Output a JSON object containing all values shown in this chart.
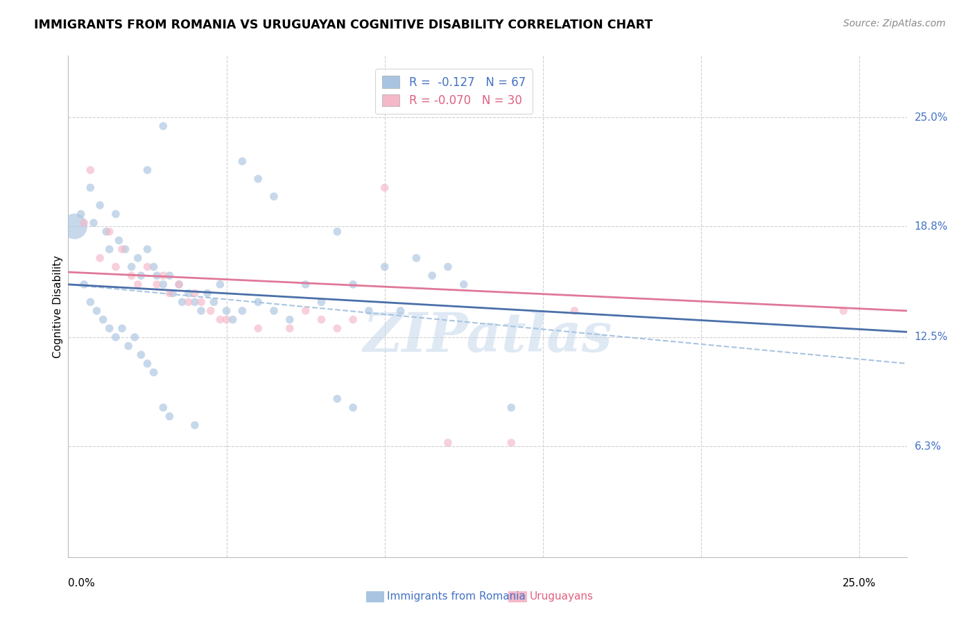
{
  "title": "IMMIGRANTS FROM ROMANIA VS URUGUAYAN COGNITIVE DISABILITY CORRELATION CHART",
  "source": "Source: ZipAtlas.com",
  "ylabel": "Cognitive Disability",
  "right_yticks": [
    "25.0%",
    "18.8%",
    "12.5%",
    "6.3%"
  ],
  "right_ytick_vals": [
    0.25,
    0.188,
    0.125,
    0.063
  ],
  "legend_blue_r": "-0.127",
  "legend_blue_n": "67",
  "legend_pink_r": "-0.070",
  "legend_pink_n": "30",
  "blue_color": "#a8c4e0",
  "pink_color": "#f4b8c8",
  "blue_line_color": "#4a6fa8",
  "pink_line_color": "#e07898",
  "blue_scatter": [
    [
      0.004,
      0.195
    ],
    [
      0.007,
      0.21
    ],
    [
      0.008,
      0.19
    ],
    [
      0.01,
      0.2
    ],
    [
      0.012,
      0.185
    ],
    [
      0.013,
      0.175
    ],
    [
      0.015,
      0.195
    ],
    [
      0.016,
      0.18
    ],
    [
      0.018,
      0.175
    ],
    [
      0.02,
      0.165
    ],
    [
      0.022,
      0.17
    ],
    [
      0.023,
      0.16
    ],
    [
      0.025,
      0.175
    ],
    [
      0.027,
      0.165
    ],
    [
      0.028,
      0.16
    ],
    [
      0.03,
      0.155
    ],
    [
      0.032,
      0.16
    ],
    [
      0.033,
      0.15
    ],
    [
      0.035,
      0.155
    ],
    [
      0.036,
      0.145
    ],
    [
      0.038,
      0.15
    ],
    [
      0.04,
      0.145
    ],
    [
      0.042,
      0.14
    ],
    [
      0.044,
      0.15
    ],
    [
      0.046,
      0.145
    ],
    [
      0.048,
      0.155
    ],
    [
      0.05,
      0.14
    ],
    [
      0.052,
      0.135
    ],
    [
      0.055,
      0.14
    ],
    [
      0.06,
      0.145
    ],
    [
      0.065,
      0.14
    ],
    [
      0.07,
      0.135
    ],
    [
      0.075,
      0.155
    ],
    [
      0.08,
      0.145
    ],
    [
      0.085,
      0.185
    ],
    [
      0.09,
      0.155
    ],
    [
      0.095,
      0.14
    ],
    [
      0.1,
      0.165
    ],
    [
      0.105,
      0.14
    ],
    [
      0.11,
      0.17
    ],
    [
      0.115,
      0.16
    ],
    [
      0.12,
      0.165
    ],
    [
      0.125,
      0.155
    ],
    [
      0.03,
      0.245
    ],
    [
      0.025,
      0.22
    ],
    [
      0.055,
      0.225
    ],
    [
      0.06,
      0.215
    ],
    [
      0.065,
      0.205
    ],
    [
      0.005,
      0.155
    ],
    [
      0.007,
      0.145
    ],
    [
      0.009,
      0.14
    ],
    [
      0.011,
      0.135
    ],
    [
      0.013,
      0.13
    ],
    [
      0.015,
      0.125
    ],
    [
      0.017,
      0.13
    ],
    [
      0.019,
      0.12
    ],
    [
      0.021,
      0.125
    ],
    [
      0.023,
      0.115
    ],
    [
      0.025,
      0.11
    ],
    [
      0.027,
      0.105
    ],
    [
      0.03,
      0.085
    ],
    [
      0.032,
      0.08
    ],
    [
      0.04,
      0.075
    ],
    [
      0.085,
      0.09
    ],
    [
      0.09,
      0.085
    ],
    [
      0.14,
      0.085
    ]
  ],
  "pink_scatter": [
    [
      0.005,
      0.19
    ],
    [
      0.007,
      0.22
    ],
    [
      0.01,
      0.17
    ],
    [
      0.013,
      0.185
    ],
    [
      0.015,
      0.165
    ],
    [
      0.017,
      0.175
    ],
    [
      0.02,
      0.16
    ],
    [
      0.022,
      0.155
    ],
    [
      0.025,
      0.165
    ],
    [
      0.028,
      0.155
    ],
    [
      0.03,
      0.16
    ],
    [
      0.032,
      0.15
    ],
    [
      0.035,
      0.155
    ],
    [
      0.038,
      0.145
    ],
    [
      0.04,
      0.15
    ],
    [
      0.042,
      0.145
    ],
    [
      0.045,
      0.14
    ],
    [
      0.048,
      0.135
    ],
    [
      0.07,
      0.13
    ],
    [
      0.075,
      0.14
    ],
    [
      0.08,
      0.135
    ],
    [
      0.085,
      0.13
    ],
    [
      0.09,
      0.135
    ],
    [
      0.1,
      0.21
    ],
    [
      0.12,
      0.065
    ],
    [
      0.14,
      0.065
    ],
    [
      0.16,
      0.14
    ],
    [
      0.245,
      0.14
    ],
    [
      0.05,
      0.135
    ],
    [
      0.06,
      0.13
    ]
  ],
  "blue_dot_size": 70,
  "pink_dot_size": 70,
  "big_blue_dot": [
    0.002,
    0.188
  ],
  "big_blue_dot_size": 700,
  "xlim": [
    0.0,
    0.265
  ],
  "ylim": [
    0.0,
    0.285
  ],
  "blue_line": [
    [
      0.0,
      0.155
    ],
    [
      0.265,
      0.128
    ]
  ],
  "pink_line": [
    [
      0.0,
      0.162
    ],
    [
      0.265,
      0.14
    ]
  ],
  "blue_dash_line": [
    [
      0.0,
      0.155
    ],
    [
      0.265,
      0.11
    ]
  ],
  "watermark": "ZIPatlas",
  "watermark_color": "#c5d8ec",
  "grid_color": "#d0d0d0",
  "xtick_positions": [
    0.0,
    0.05,
    0.1,
    0.15,
    0.2,
    0.25
  ]
}
